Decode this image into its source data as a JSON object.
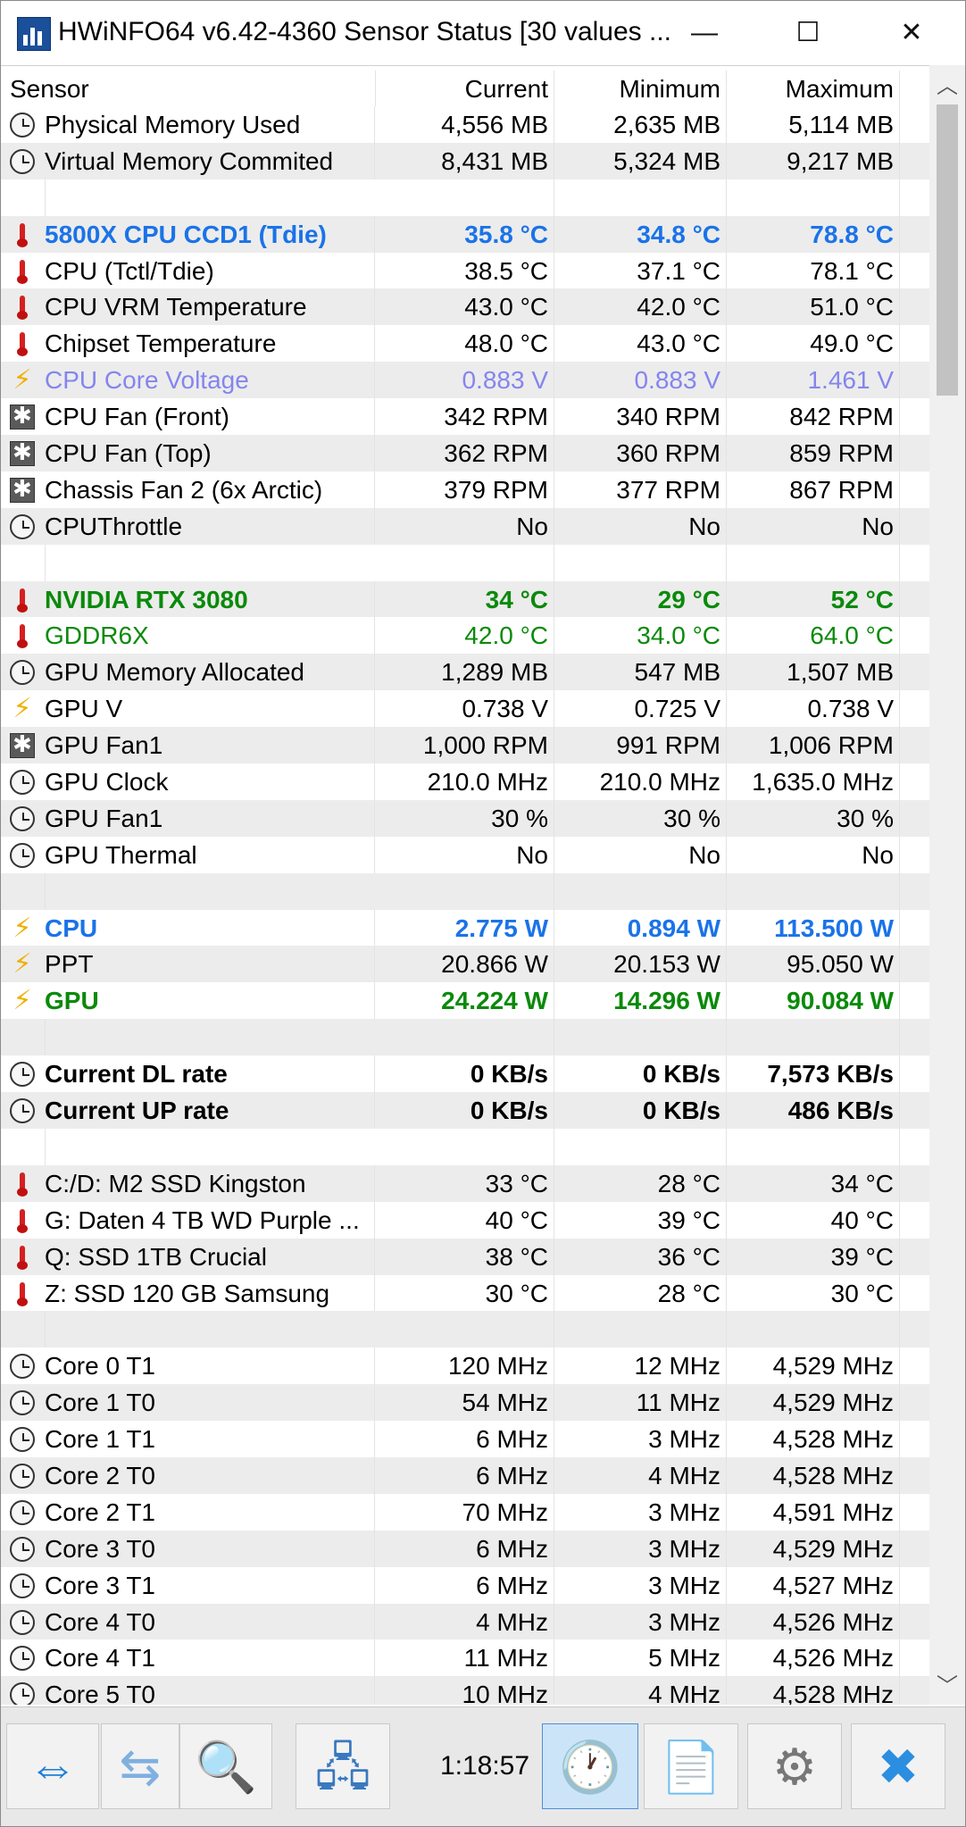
{
  "title": "HWiNFO64 v6.42-4360 Sensor Status [30 values ...",
  "window_controls": {
    "minimize": "—",
    "maximize": "☐",
    "close": "✕"
  },
  "columns": {
    "sensor": "Sensor",
    "current": "Current",
    "minimum": "Minimum",
    "maximum": "Maximum"
  },
  "colors": {
    "blue": "#1a73e8",
    "green": "#0a8a0a",
    "lavender": "#8585ee",
    "black": "#000000"
  },
  "rows": [
    {
      "icon": "clock-icon",
      "name": "Physical Memory Used",
      "cur": "4,556 MB",
      "min": "2,635 MB",
      "max": "5,114 MB",
      "style": "normal"
    },
    {
      "icon": "clock-icon",
      "name": "Virtual Memory Commited",
      "cur": "8,431 MB",
      "min": "5,324 MB",
      "max": "9,217 MB",
      "style": "normal"
    },
    {
      "blank": true
    },
    {
      "icon": "thermometer-icon",
      "name": "5800X CPU CCD1 (Tdie)",
      "cur": "35.8 °C",
      "min": "34.8 °C",
      "max": "78.8 °C",
      "style": "blue"
    },
    {
      "icon": "thermometer-icon",
      "name": "CPU (Tctl/Tdie)",
      "cur": "38.5 °C",
      "min": "37.1 °C",
      "max": "78.1 °C",
      "style": "normal"
    },
    {
      "icon": "thermometer-icon",
      "name": "CPU VRM Temperature",
      "cur": "43.0 °C",
      "min": "42.0 °C",
      "max": "51.0 °C",
      "style": "normal"
    },
    {
      "icon": "thermometer-icon",
      "name": "Chipset Temperature",
      "cur": "48.0 °C",
      "min": "43.0 °C",
      "max": "49.0 °C",
      "style": "normal"
    },
    {
      "icon": "lightning-icon",
      "name": "CPU Core Voltage",
      "cur": "0.883 V",
      "min": "0.883 V",
      "max": "1.461 V",
      "style": "lavender"
    },
    {
      "icon": "fan-icon",
      "name": "CPU Fan (Front)",
      "cur": "342 RPM",
      "min": "340 RPM",
      "max": "842 RPM",
      "style": "normal"
    },
    {
      "icon": "fan-icon",
      "name": "CPU Fan (Top)",
      "cur": "362 RPM",
      "min": "360 RPM",
      "max": "859 RPM",
      "style": "normal"
    },
    {
      "icon": "fan-icon",
      "name": "Chassis Fan 2 (6x Arctic)",
      "cur": "379 RPM",
      "min": "377 RPM",
      "max": "867 RPM",
      "style": "normal"
    },
    {
      "icon": "clock-icon",
      "name": "CPUThrottle",
      "cur": "No",
      "min": "No",
      "max": "No",
      "style": "normal"
    },
    {
      "blank": true
    },
    {
      "icon": "thermometer-icon",
      "name": "NVIDIA RTX 3080",
      "cur": "34 °C",
      "min": "29 °C",
      "max": "52 °C",
      "style": "green-bold"
    },
    {
      "icon": "thermometer-icon",
      "name": "GDDR6X",
      "cur": "42.0 °C",
      "min": "34.0 °C",
      "max": "64.0 °C",
      "style": "green"
    },
    {
      "icon": "clock-icon",
      "name": "GPU Memory Allocated",
      "cur": "1,289 MB",
      "min": "547 MB",
      "max": "1,507 MB",
      "style": "normal"
    },
    {
      "icon": "lightning-icon",
      "name": "GPU V",
      "cur": "0.738 V",
      "min": "0.725 V",
      "max": "0.738 V",
      "style": "normal"
    },
    {
      "icon": "fan-icon",
      "name": "GPU Fan1",
      "cur": "1,000 RPM",
      "min": "991 RPM",
      "max": "1,006 RPM",
      "style": "normal"
    },
    {
      "icon": "clock-icon",
      "name": "GPU Clock",
      "cur": "210.0 MHz",
      "min": "210.0 MHz",
      "max": "1,635.0 MHz",
      "style": "normal"
    },
    {
      "icon": "clock-icon",
      "name": "GPU Fan1",
      "cur": "30 %",
      "min": "30 %",
      "max": "30 %",
      "style": "normal"
    },
    {
      "icon": "clock-icon",
      "name": "GPU Thermal",
      "cur": "No",
      "min": "No",
      "max": "No",
      "style": "normal"
    },
    {
      "blank": true
    },
    {
      "icon": "lightning-icon",
      "name": "CPU",
      "cur": "2.775 W",
      "min": "0.894 W",
      "max": "113.500 W",
      "style": "blue"
    },
    {
      "icon": "lightning-icon",
      "name": "PPT",
      "cur": "20.866 W",
      "min": "20.153 W",
      "max": "95.050 W",
      "style": "normal"
    },
    {
      "icon": "lightning-icon",
      "name": "GPU",
      "cur": "24.224 W",
      "min": "14.296 W",
      "max": "90.084 W",
      "style": "green-bold"
    },
    {
      "blank": true
    },
    {
      "icon": "clock-icon",
      "name": "Current DL rate",
      "cur": "0 KB/s",
      "min": "0 KB/s",
      "max": "7,573 KB/s",
      "style": "bold"
    },
    {
      "icon": "clock-icon",
      "name": "Current UP rate",
      "cur": "0 KB/s",
      "min": "0 KB/s",
      "max": "486 KB/s",
      "style": "bold"
    },
    {
      "blank": true
    },
    {
      "icon": "thermometer-icon",
      "name": "C:/D: M2 SSD Kingston",
      "cur": "33 °C",
      "min": "28 °C",
      "max": "34 °C",
      "style": "normal"
    },
    {
      "icon": "thermometer-icon",
      "name": "G: Daten 4 TB WD Purple ...",
      "cur": "40 °C",
      "min": "39 °C",
      "max": "40 °C",
      "style": "normal"
    },
    {
      "icon": "thermometer-icon",
      "name": "Q: SSD 1TB Crucial",
      "cur": "38 °C",
      "min": "36 °C",
      "max": "39 °C",
      "style": "normal"
    },
    {
      "icon": "thermometer-icon",
      "name": "Z: SSD 120 GB Samsung",
      "cur": "30 °C",
      "min": "28 °C",
      "max": "30 °C",
      "style": "normal"
    },
    {
      "blank": true
    },
    {
      "icon": "clock-icon",
      "name": "Core 0 T1",
      "cur": "120 MHz",
      "min": "12 MHz",
      "max": "4,529 MHz",
      "style": "normal"
    },
    {
      "icon": "clock-icon",
      "name": "Core 1 T0",
      "cur": "54 MHz",
      "min": "11 MHz",
      "max": "4,529 MHz",
      "style": "normal"
    },
    {
      "icon": "clock-icon",
      "name": "Core 1 T1",
      "cur": "6 MHz",
      "min": "3 MHz",
      "max": "4,528 MHz",
      "style": "normal"
    },
    {
      "icon": "clock-icon",
      "name": "Core 2 T0",
      "cur": "6 MHz",
      "min": "4 MHz",
      "max": "4,528 MHz",
      "style": "normal"
    },
    {
      "icon": "clock-icon",
      "name": "Core 2 T1",
      "cur": "70 MHz",
      "min": "3 MHz",
      "max": "4,591 MHz",
      "style": "normal"
    },
    {
      "icon": "clock-icon",
      "name": "Core 3 T0",
      "cur": "6 MHz",
      "min": "3 MHz",
      "max": "4,529 MHz",
      "style": "normal"
    },
    {
      "icon": "clock-icon",
      "name": "Core 3 T1",
      "cur": "6 MHz",
      "min": "3 MHz",
      "max": "4,527 MHz",
      "style": "normal"
    },
    {
      "icon": "clock-icon",
      "name": "Core 4 T0",
      "cur": "4 MHz",
      "min": "3 MHz",
      "max": "4,526 MHz",
      "style": "normal"
    },
    {
      "icon": "clock-icon",
      "name": "Core 4 T1",
      "cur": "11 MHz",
      "min": "5 MHz",
      "max": "4,526 MHz",
      "style": "normal"
    },
    {
      "icon": "clock-icon",
      "name": "Core 5 T0",
      "cur": "10 MHz",
      "min": "4 MHz",
      "max": "4,528 MHz",
      "style": "normal"
    }
  ],
  "toolbar": {
    "timer": "1:18:57",
    "buttons": [
      {
        "name": "expand-arrows-button",
        "icon": "arrows-out-icon",
        "glyph": "⇔"
      },
      {
        "name": "collapse-arrows-button",
        "icon": "arrows-in-icon",
        "glyph": "⇆"
      },
      {
        "name": "monitor-search-button",
        "icon": "monitor-magnifier-icon",
        "glyph": "🔍"
      },
      {
        "name": "network-computers-button",
        "icon": "network-computers-icon",
        "glyph": "🖧"
      },
      {
        "name": "clock-reset-button",
        "icon": "stopwatch-icon",
        "glyph": "🕐"
      },
      {
        "name": "logging-button",
        "icon": "document-add-icon",
        "glyph": "📄"
      },
      {
        "name": "settings-button",
        "icon": "gear-icon",
        "glyph": "⚙"
      },
      {
        "name": "close-sensors-button",
        "icon": "close-x-icon",
        "glyph": "✖"
      }
    ]
  }
}
